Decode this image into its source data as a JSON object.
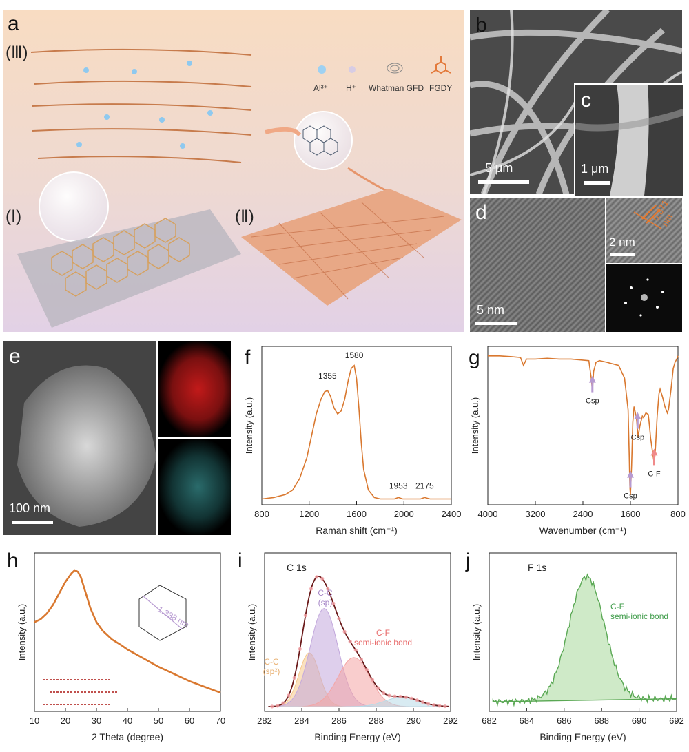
{
  "panel_a": {
    "label": "a",
    "stages": [
      "(Ⅲ)",
      "(Ⅰ)",
      "(Ⅱ)"
    ],
    "legend": [
      "Al³⁺",
      "H⁺",
      "Whatman GFD",
      "FGDY"
    ]
  },
  "panel_b": {
    "label": "b",
    "scale": "5 μm"
  },
  "panel_c": {
    "label": "c",
    "scale": "1 μm"
  },
  "panel_d": {
    "label": "d",
    "scale": "5 nm",
    "inset_scale": "2 nm",
    "spacing": "0.371 nm"
  },
  "panel_e": {
    "label": "e",
    "scale": "100 nm"
  },
  "panel_f": {
    "label": "f"
  },
  "panel_g": {
    "label": "g"
  },
  "panel_h": {
    "label": "h",
    "pore_label": "1.338 nm"
  },
  "panel_i": {
    "label": "i"
  },
  "panel_j": {
    "label": "j"
  },
  "chart_data": [
    {
      "id": "f",
      "type": "line",
      "xlabel": "Raman shift (cm⁻¹)",
      "ylabel": "Intensity (a.u.)",
      "xlim": [
        800,
        2400
      ],
      "xticks": [
        "800",
        "1200",
        "1600",
        "2000",
        "2400"
      ],
      "color": "#d9782f",
      "series": [
        {
          "x": [
            800,
            900,
            1000,
            1060,
            1120,
            1180,
            1220,
            1260,
            1300,
            1330,
            1355,
            1380,
            1410,
            1440,
            1470,
            1500,
            1530,
            1555,
            1580,
            1600,
            1620,
            1640,
            1660,
            1700,
            1750,
            1800,
            1860,
            1920,
            1953,
            1990,
            2060,
            2140,
            2175,
            2220,
            2300,
            2400
          ],
          "y": [
            0.04,
            0.05,
            0.07,
            0.1,
            0.18,
            0.32,
            0.47,
            0.62,
            0.72,
            0.77,
            0.78,
            0.74,
            0.66,
            0.62,
            0.64,
            0.72,
            0.85,
            0.93,
            0.95,
            0.86,
            0.66,
            0.42,
            0.24,
            0.1,
            0.05,
            0.04,
            0.04,
            0.04,
            0.05,
            0.04,
            0.04,
            0.04,
            0.05,
            0.04,
            0.04,
            0.04
          ]
        }
      ],
      "annotations": [
        {
          "text": "1355",
          "x": 1355,
          "y": 0.86
        },
        {
          "text": "1580",
          "x": 1580,
          "y": 1.0
        },
        {
          "text": "1953",
          "x": 1953,
          "y": 0.11
        },
        {
          "text": "2175",
          "x": 2175,
          "y": 0.11
        }
      ],
      "ylim": [
        0,
        1.08
      ]
    },
    {
      "id": "g",
      "type": "line",
      "xlabel": "Wavenumber (cm⁻¹)",
      "ylabel": "Intensity (a.u.)",
      "xlim": [
        4000,
        800
      ],
      "xticks": [
        "4000",
        "3200",
        "2400",
        "1600",
        "800"
      ],
      "color": "#d9782f",
      "series": [
        {
          "x": [
            4000,
            3800,
            3600,
            3450,
            3400,
            3350,
            3200,
            3000,
            2800,
            2600,
            2300,
            2260,
            2240,
            2220,
            2180,
            2120,
            2000,
            1800,
            1700,
            1640,
            1620,
            1610,
            1600,
            1580,
            1560,
            1540,
            1500,
            1470,
            1440,
            1400,
            1380,
            1340,
            1300,
            1280,
            1260,
            1230,
            1200,
            1180,
            1150,
            1120,
            1100,
            1060,
            1020,
            980,
            960,
            920,
            880,
            850,
            820,
            800
          ],
          "y": [
            0.94,
            0.94,
            0.935,
            0.93,
            0.88,
            0.92,
            0.92,
            0.925,
            0.92,
            0.92,
            0.91,
            0.8,
            0.72,
            0.84,
            0.9,
            0.91,
            0.9,
            0.88,
            0.8,
            0.6,
            0.3,
            0.12,
            0.06,
            0.25,
            0.52,
            0.62,
            0.55,
            0.43,
            0.5,
            0.56,
            0.55,
            0.58,
            0.57,
            0.5,
            0.42,
            0.34,
            0.26,
            0.35,
            0.56,
            0.7,
            0.73,
            0.68,
            0.62,
            0.58,
            0.6,
            0.72,
            0.86,
            0.9,
            0.92,
            0.94
          ]
        }
      ],
      "annotations": [
        {
          "text": "Csp",
          "x": 2240,
          "arrow_color": "#b79ad1"
        },
        {
          "text": "Csp",
          "x": 1600,
          "arrow_color": "#b79ad1"
        },
        {
          "text": "Csp",
          "x": 1480,
          "arrow_color": "#b79ad1"
        },
        {
          "text": "C-F",
          "x": 1200,
          "arrow_color": "#f08a8a"
        }
      ],
      "ylim": [
        0,
        1
      ]
    },
    {
      "id": "h",
      "type": "line",
      "xlabel": "2 Theta (degree)",
      "ylabel": "Intensity (a.u.)",
      "xlim": [
        10,
        70
      ],
      "xticks": [
        "10",
        "20",
        "30",
        "40",
        "50",
        "60",
        "70"
      ],
      "color": "#d9782f",
      "series": [
        {
          "x": [
            10,
            12,
            14,
            16,
            18,
            20,
            22,
            23,
            24,
            25,
            26,
            28,
            30,
            32,
            35,
            38,
            40,
            45,
            50,
            55,
            60,
            65,
            70
          ],
          "y": [
            0.62,
            0.64,
            0.68,
            0.74,
            0.82,
            0.9,
            0.96,
            0.98,
            0.97,
            0.93,
            0.86,
            0.72,
            0.62,
            0.56,
            0.5,
            0.46,
            0.43,
            0.37,
            0.31,
            0.26,
            0.21,
            0.17,
            0.13
          ]
        }
      ],
      "ylim": [
        0,
        1.1
      ]
    },
    {
      "id": "i",
      "type": "area",
      "xlabel": "Binding Energy (eV)",
      "ylabel": "Intensity (a.u.)",
      "xlim": [
        282,
        292
      ],
      "xticks": [
        "282",
        "284",
        "286",
        "288",
        "290",
        "292"
      ],
      "title": "C 1s",
      "series": [
        {
          "name": "C-C (sp²)",
          "center": 284.4,
          "amp": 0.34,
          "width": 0.55,
          "color": "#f5c88a"
        },
        {
          "name": "C-C (sp)",
          "center": 285.2,
          "amp": 0.62,
          "width": 0.75,
          "color": "#c2a8dc"
        },
        {
          "name": "C-F semi-ionic bond",
          "center": 286.8,
          "amp": 0.31,
          "width": 0.85,
          "color": "#f4a4a4"
        },
        {
          "name": "",
          "center": 289.4,
          "amp": 0.06,
          "width": 0.9,
          "color": "#b8dbe8"
        }
      ],
      "labels": [
        {
          "text": "C-C",
          "sub": "(sp)",
          "color": "#a889c8"
        },
        {
          "text": "C-C",
          "sub": "(sp²)",
          "color": "#e9b071"
        },
        {
          "text": "C-F",
          "sub": "semi-ionic bond",
          "color": "#e86a6a"
        }
      ],
      "ylim": [
        0,
        1
      ]
    },
    {
      "id": "j",
      "type": "area",
      "xlabel": "Binding Energy (eV)",
      "ylabel": "Intensity (a.u.)",
      "xlim": [
        682,
        692
      ],
      "xticks": [
        "682",
        "684",
        "686",
        "688",
        "690",
        "692"
      ],
      "title": "F 1s",
      "series": [
        {
          "name": "C-F semi-ionic bond",
          "center": 687.2,
          "amp": 0.78,
          "width": 0.95,
          "color": "#5aa854"
        }
      ],
      "labels": [
        {
          "text": "C-F",
          "sub": "semi-ionic bond",
          "color": "#3f9c4a"
        }
      ],
      "ylim": [
        0,
        1
      ]
    }
  ]
}
